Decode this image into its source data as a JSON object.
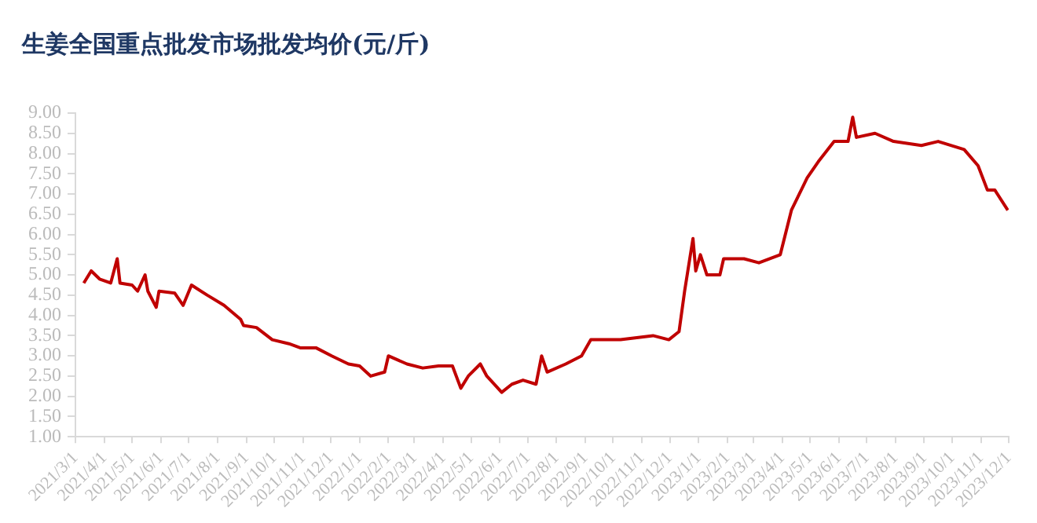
{
  "chart_data": {
    "type": "line",
    "title": "生姜全国重点批发市场批发均价(元/斤)",
    "x": [
      "2021-03-10",
      "2021-03-18",
      "2021-03-27",
      "2021-04-08",
      "2021-04-15",
      "2021-04-18",
      "2021-05-01",
      "2021-05-07",
      "2021-05-15",
      "2021-05-18",
      "2021-05-27",
      "2021-05-30",
      "2021-06-16",
      "2021-06-25",
      "2021-07-04",
      "2021-07-21",
      "2021-08-08",
      "2021-08-26",
      "2021-08-29",
      "2021-09-12",
      "2021-09-29",
      "2021-10-17",
      "2021-10-29",
      "2021-11-15",
      "2021-12-02",
      "2021-12-20",
      "2022-01-01",
      "2022-01-13",
      "2022-01-28",
      "2022-02-01",
      "2022-02-21",
      "2022-03-10",
      "2022-03-27",
      "2022-04-11",
      "2022-04-20",
      "2022-04-28",
      "2022-05-11",
      "2022-05-18",
      "2022-05-30",
      "2022-06-03",
      "2022-06-14",
      "2022-06-26",
      "2022-07-10",
      "2022-07-16",
      "2022-07-22",
      "2022-08-11",
      "2022-08-28",
      "2022-09-07",
      "2022-10-09",
      "2022-11-13",
      "2022-11-30",
      "2022-12-11",
      "2022-12-17",
      "2022-12-26",
      "2022-12-29",
      "2023-01-03",
      "2023-01-10",
      "2023-01-24",
      "2023-01-28",
      "2023-02-19",
      "2023-03-07",
      "2023-03-30",
      "2023-04-11",
      "2023-04-28",
      "2023-05-10",
      "2023-05-27",
      "2023-06-11",
      "2023-06-16",
      "2023-06-20",
      "2023-07-10",
      "2023-07-30",
      "2023-08-29",
      "2023-09-16",
      "2023-10-14",
      "2023-10-29",
      "2023-11-08",
      "2023-11-16",
      "2023-11-30"
    ],
    "series": [
      {
        "color": "#c00000",
        "values": [
          4.8,
          5.1,
          4.9,
          4.8,
          5.4,
          4.8,
          4.75,
          4.6,
          5.0,
          4.6,
          4.2,
          4.6,
          4.55,
          4.25,
          4.75,
          4.5,
          4.25,
          3.9,
          3.75,
          3.7,
          3.4,
          3.3,
          3.2,
          3.2,
          3.0,
          2.8,
          2.75,
          2.5,
          2.6,
          3.0,
          2.8,
          2.7,
          2.75,
          2.75,
          2.2,
          2.5,
          2.8,
          2.5,
          2.2,
          2.1,
          2.3,
          2.4,
          2.3,
          3.0,
          2.6,
          2.8,
          3.0,
          3.4,
          3.4,
          3.5,
          3.4,
          3.6,
          4.6,
          5.9,
          5.1,
          5.5,
          5.0,
          5.0,
          5.4,
          5.4,
          5.3,
          5.5,
          6.6,
          7.4,
          7.8,
          8.3,
          8.3,
          8.9,
          8.4,
          8.5,
          8.3,
          8.2,
          8.3,
          8.1,
          7.7,
          7.1,
          7.1,
          6.6
        ]
      }
    ],
    "xlim": [
      "2021-03-01",
      "2023-12-01"
    ],
    "xticks": [
      {
        "value": "2021-03-01",
        "label": "2021/3/1"
      },
      {
        "value": "2021-04-01",
        "label": "2021/4/1"
      },
      {
        "value": "2021-05-01",
        "label": "2021/5/1"
      },
      {
        "value": "2021-06-01",
        "label": "2021/6/1"
      },
      {
        "value": "2021-07-01",
        "label": "2021/7/1"
      },
      {
        "value": "2021-08-01",
        "label": "2021/8/1"
      },
      {
        "value": "2021-09-01",
        "label": "2021/9/1"
      },
      {
        "value": "2021-10-01",
        "label": "2021/10/1"
      },
      {
        "value": "2021-11-01",
        "label": "2021/11/1"
      },
      {
        "value": "2021-12-01",
        "label": "2021/12/1"
      },
      {
        "value": "2022-01-01",
        "label": "2022/1/1"
      },
      {
        "value": "2022-02-01",
        "label": "2022/2/1"
      },
      {
        "value": "2022-03-01",
        "label": "2022/3/1"
      },
      {
        "value": "2022-04-01",
        "label": "2022/4/1"
      },
      {
        "value": "2022-05-01",
        "label": "2022/5/1"
      },
      {
        "value": "2022-06-01",
        "label": "2022/6/1"
      },
      {
        "value": "2022-07-01",
        "label": "2022/7/1"
      },
      {
        "value": "2022-08-01",
        "label": "2022/8/1"
      },
      {
        "value": "2022-09-01",
        "label": "2022/9/1"
      },
      {
        "value": "2022-10-01",
        "label": "2022/10/1"
      },
      {
        "value": "2022-11-01",
        "label": "2022/11/1"
      },
      {
        "value": "2022-12-01",
        "label": "2022/12/1"
      },
      {
        "value": "2023-01-01",
        "label": "2023/1/1"
      },
      {
        "value": "2023-02-01",
        "label": "2023/2/1"
      },
      {
        "value": "2023-03-01",
        "label": "2023/3/1"
      },
      {
        "value": "2023-04-01",
        "label": "2023/4/1"
      },
      {
        "value": "2023-05-01",
        "label": "2023/5/1"
      },
      {
        "value": "2023-06-01",
        "label": "2023/6/1"
      },
      {
        "value": "2023-07-01",
        "label": "2023/7/1"
      },
      {
        "value": "2023-08-01",
        "label": "2023/8/1"
      },
      {
        "value": "2023-09-01",
        "label": "2023/9/1"
      },
      {
        "value": "2023-10-01",
        "label": "2023/10/1"
      },
      {
        "value": "2023-11-01",
        "label": "2023/11/1"
      },
      {
        "value": "2023-12-01",
        "label": "2023/12/1"
      }
    ],
    "ylim": [
      1,
      9
    ],
    "yticks": [
      {
        "value": 1,
        "label": "1.00"
      },
      {
        "value": 1.5,
        "label": "1.50"
      },
      {
        "value": 2,
        "label": "2.00"
      },
      {
        "value": 2.5,
        "label": "2.50"
      },
      {
        "value": 3,
        "label": "3.00"
      },
      {
        "value": 3.5,
        "label": "3.50"
      },
      {
        "value": 4,
        "label": "4.00"
      },
      {
        "value": 4.5,
        "label": "4.50"
      },
      {
        "value": 5,
        "label": "5.00"
      },
      {
        "value": 5.5,
        "label": "5.50"
      },
      {
        "value": 6,
        "label": "6.00"
      },
      {
        "value": 6.5,
        "label": "6.50"
      },
      {
        "value": 7,
        "label": "7.00"
      },
      {
        "value": 7.5,
        "label": "7.50"
      },
      {
        "value": 8,
        "label": "8.00"
      },
      {
        "value": 8.5,
        "label": "8.50"
      },
      {
        "value": 9,
        "label": "9.00"
      }
    ],
    "grid": false,
    "legend": false,
    "marker": "none",
    "line_style": "solid"
  }
}
